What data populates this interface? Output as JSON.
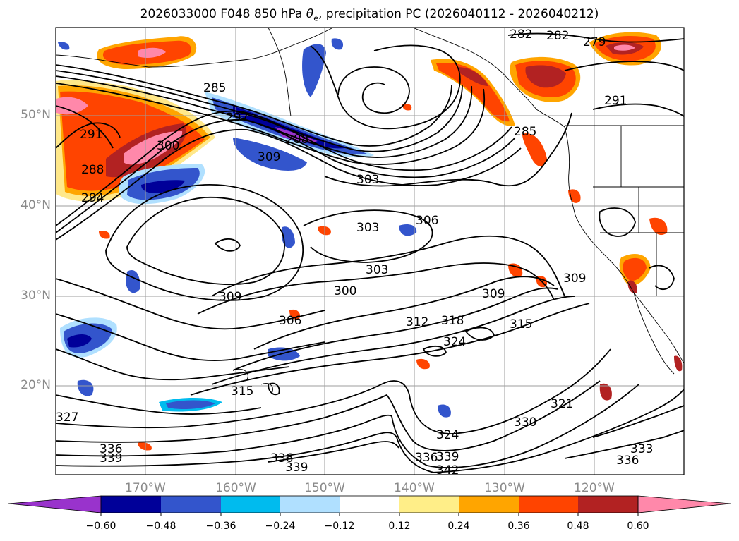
{
  "title": {
    "prefix": "2026033000 F048 850 hPa ",
    "theta_symbol": "θ",
    "theta_sub": "e",
    "suffix": ", precipitation PC (2026040112 - 2026040212)"
  },
  "map": {
    "region": "North Pacific",
    "lat_labels": [
      "50°N",
      "40°N",
      "30°N",
      "20°N"
    ],
    "lon_labels": [
      "170°W",
      "160°W",
      "150°W",
      "140°W",
      "130°W",
      "120°W"
    ],
    "grid": true
  },
  "contour_labels": [
    "282",
    "282",
    "279",
    "285",
    "291",
    "291",
    "297",
    "288",
    "300",
    "309",
    "285",
    "288",
    "294",
    "303",
    "306",
    "303",
    "309",
    "303",
    "300",
    "306",
    "309",
    "309",
    "312",
    "318",
    "315",
    "324",
    "315",
    "321",
    "327",
    "336",
    "339",
    "330",
    "324",
    "336",
    "339",
    "336",
    "333",
    "336",
    "339",
    "342"
  ],
  "colorbar": {
    "colors": [
      "#9933cc",
      "#000099",
      "#3355cc",
      "#00bbee",
      "#b0e0ff",
      "#ffffff",
      "#ffee88",
      "#ffa500",
      "#ff4400",
      "#b22222",
      "#ff88aa"
    ],
    "ticks": [
      "−0.60",
      "−0.48",
      "−0.36",
      "−0.24",
      "−0.12",
      "0.12",
      "0.24",
      "0.36",
      "0.48",
      "0.60"
    ],
    "extend": "both"
  }
}
